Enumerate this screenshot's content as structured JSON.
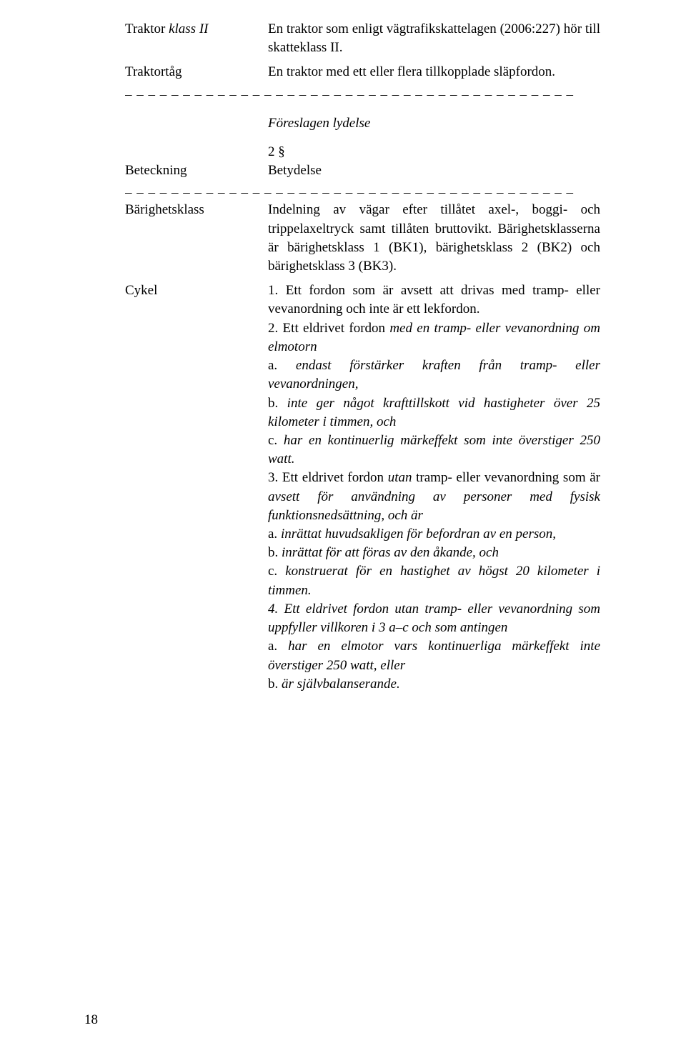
{
  "top": {
    "rows": [
      {
        "term_plain": "Traktor ",
        "term_italic": "klass II",
        "def": "En traktor som enligt vägtrafik­skattelagen (2006:227) hör till skatteklass II."
      },
      {
        "term_plain": "Traktortåg",
        "term_italic": "",
        "def": "En traktor med ett eller flera till­kopplade släpfordon."
      }
    ]
  },
  "proposed_label": "Föreslagen lydelse",
  "section_number": "2 §",
  "header": {
    "term": "Beteckning",
    "def": "Betydelse"
  },
  "barighet": {
    "term": "Bärighetsklass",
    "def": "Indelning av vägar efter tillåtet axel-, boggi- och trippelaxeltryck samt tillåten bruttovikt. Bärighets­klasserna är bärighetsklass 1 (BK1), bärighetsklass 2 (BK2) och bärighetsklass 3 (BK3)."
  },
  "cykel": {
    "term": "Cykel",
    "p1_a": "1. Ett fordon som är avsett att drivas med tramp- eller vevanord­ning och inte är ett lekfordon.",
    "p2_a": "2. Ett eldrivet fordon ",
    "p2_b": "med en tramp- eller vevanordning om elmotorn",
    "p2a_a": "a. ",
    "p2a_b": "endast förstärker kraften från tramp- eller vevanordningen,",
    "p2b_a": "b. ",
    "p2b_b": "inte ger något krafttillskott vid hastigheter över 25 kilometer i timmen, och",
    "p2c_a": "c. ",
    "p2c_b": "har en kontinuerlig märkeffekt som inte överstiger 250 watt.",
    "p3_a": "3. Ett eldrivet fordon ",
    "p3_b": "utan ",
    "p3_c": "tramp- eller vevanordning som är ",
    "p3_d": "avsett för användning av personer med fysisk funktionsnedsättning, och är",
    "p3a_a": "a. ",
    "p3a_b": "inrättat huvudsakligen för befordran av en person,",
    "p3b_a": "b. ",
    "p3b_b": "inrättat för att föras av den åkande, och",
    "p3c_a": "c. ",
    "p3c_b": "konstruerat för en hastighet av högst 20 kilometer i timmen.",
    "p4_a": "4. Ett eldrivet fordon utan tramp- eller vevanordning som uppfyller villkoren i 3 a–c och som antingen",
    "p4a_a": "a. ",
    "p4a_b": "har en elmotor vars kontinuer­liga märkeffekt inte överstiger 250 watt, eller",
    "p4b_a": "b. ",
    "p4b_b": "är självbalanserande."
  },
  "page_number": "18",
  "dash_line": "– – – – – – – – – – – – – – – – – – – – – – – – – – – – – – – – – – – – – – –"
}
